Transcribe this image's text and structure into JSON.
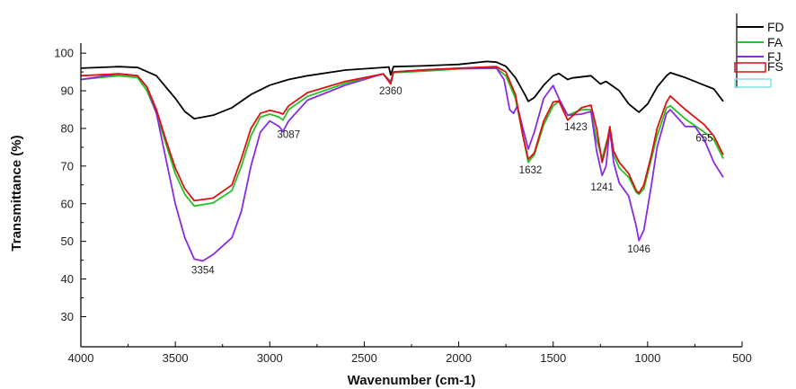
{
  "chart_data": {
    "type": "line",
    "title": "",
    "xlabel": "Wavenumber (cm-1)",
    "ylabel": "Transmittance (%)",
    "xlim": [
      4000,
      500
    ],
    "ylim": [
      22,
      106
    ],
    "x_ticks": [
      4000,
      3500,
      3000,
      2500,
      2000,
      1500,
      1000,
      500
    ],
    "y_ticks": [
      30,
      40,
      50,
      60,
      70,
      80,
      90,
      100
    ],
    "legend_position": "top-right",
    "series": [
      {
        "name": "FD",
        "color": "#000000",
        "points": [
          [
            4000,
            96
          ],
          [
            3800,
            96.4
          ],
          [
            3700,
            96.2
          ],
          [
            3600,
            94
          ],
          [
            3500,
            88
          ],
          [
            3450,
            84.5
          ],
          [
            3400,
            82.6
          ],
          [
            3300,
            83.5
          ],
          [
            3200,
            85.5
          ],
          [
            3100,
            89
          ],
          [
            3000,
            91.5
          ],
          [
            2900,
            93
          ],
          [
            2800,
            94
          ],
          [
            2600,
            95.5
          ],
          [
            2400,
            96.2
          ],
          [
            2370,
            96.3
          ],
          [
            2360,
            94.2
          ],
          [
            2345,
            96.4
          ],
          [
            2200,
            96.6
          ],
          [
            2000,
            97
          ],
          [
            1850,
            97.8
          ],
          [
            1800,
            97.6
          ],
          [
            1750,
            96.5
          ],
          [
            1700,
            93.5
          ],
          [
            1650,
            89
          ],
          [
            1632,
            87.2
          ],
          [
            1600,
            88.2
          ],
          [
            1550,
            91.5
          ],
          [
            1500,
            94
          ],
          [
            1470,
            94.6
          ],
          [
            1423,
            93
          ],
          [
            1400,
            93.4
          ],
          [
            1300,
            94
          ],
          [
            1250,
            91.8
          ],
          [
            1220,
            92.5
          ],
          [
            1150,
            90
          ],
          [
            1100,
            86.5
          ],
          [
            1046,
            84.3
          ],
          [
            1000,
            86.5
          ],
          [
            950,
            91
          ],
          [
            900,
            94
          ],
          [
            880,
            94.8
          ],
          [
            800,
            93.5
          ],
          [
            700,
            91.5
          ],
          [
            650,
            90.5
          ],
          [
            600,
            87.2
          ]
        ]
      },
      {
        "name": "FA",
        "color": "#22c322",
        "points": [
          [
            4000,
            93
          ],
          [
            3800,
            94
          ],
          [
            3700,
            93.5
          ],
          [
            3650,
            90
          ],
          [
            3600,
            84
          ],
          [
            3550,
            76
          ],
          [
            3500,
            68
          ],
          [
            3450,
            62.5
          ],
          [
            3400,
            59.4
          ],
          [
            3300,
            60.2
          ],
          [
            3200,
            63.5
          ],
          [
            3150,
            70
          ],
          [
            3100,
            78
          ],
          [
            3050,
            83
          ],
          [
            3000,
            83.8
          ],
          [
            2950,
            83
          ],
          [
            2930,
            82.2
          ],
          [
            2900,
            85
          ],
          [
            2800,
            88.5
          ],
          [
            2600,
            92
          ],
          [
            2400,
            94.5
          ],
          [
            2360,
            92.5
          ],
          [
            2345,
            94.8
          ],
          [
            2200,
            95.2
          ],
          [
            2000,
            95.8
          ],
          [
            1800,
            96
          ],
          [
            1750,
            94
          ],
          [
            1700,
            88
          ],
          [
            1660,
            78
          ],
          [
            1632,
            71
          ],
          [
            1600,
            73
          ],
          [
            1550,
            81
          ],
          [
            1500,
            86
          ],
          [
            1470,
            87.2
          ],
          [
            1423,
            83.5
          ],
          [
            1350,
            85
          ],
          [
            1300,
            85
          ],
          [
            1270,
            77
          ],
          [
            1241,
            72
          ],
          [
            1220,
            76
          ],
          [
            1200,
            79
          ],
          [
            1180,
            73
          ],
          [
            1150,
            69.5
          ],
          [
            1100,
            67
          ],
          [
            1060,
            63
          ],
          [
            1046,
            62.5
          ],
          [
            1020,
            64
          ],
          [
            980,
            72
          ],
          [
            950,
            78
          ],
          [
            900,
            85.5
          ],
          [
            880,
            86
          ],
          [
            800,
            82.5
          ],
          [
            700,
            79
          ],
          [
            650,
            77
          ],
          [
            600,
            72
          ]
        ]
      },
      {
        "name": "FJ",
        "color": "#8a2be2",
        "points": [
          [
            4000,
            93
          ],
          [
            3800,
            94.5
          ],
          [
            3700,
            94
          ],
          [
            3650,
            91
          ],
          [
            3600,
            84
          ],
          [
            3550,
            72
          ],
          [
            3500,
            60
          ],
          [
            3450,
            51
          ],
          [
            3400,
            45.3
          ],
          [
            3354,
            44.8
          ],
          [
            3300,
            46.5
          ],
          [
            3200,
            51
          ],
          [
            3150,
            58
          ],
          [
            3100,
            70
          ],
          [
            3050,
            79
          ],
          [
            3000,
            82
          ],
          [
            2950,
            80.5
          ],
          [
            2930,
            79.2
          ],
          [
            2900,
            82
          ],
          [
            2800,
            87.5
          ],
          [
            2600,
            91.5
          ],
          [
            2400,
            94.5
          ],
          [
            2360,
            92.2
          ],
          [
            2345,
            95
          ],
          [
            2200,
            95.5
          ],
          [
            2000,
            96
          ],
          [
            1800,
            96
          ],
          [
            1760,
            93
          ],
          [
            1730,
            85
          ],
          [
            1710,
            84
          ],
          [
            1690,
            86
          ],
          [
            1660,
            80
          ],
          [
            1632,
            74.5
          ],
          [
            1600,
            79
          ],
          [
            1550,
            88
          ],
          [
            1500,
            91.4
          ],
          [
            1470,
            88
          ],
          [
            1423,
            83.5
          ],
          [
            1350,
            83.8
          ],
          [
            1300,
            84.5
          ],
          [
            1270,
            74
          ],
          [
            1241,
            67.5
          ],
          [
            1220,
            70
          ],
          [
            1200,
            80
          ],
          [
            1180,
            71
          ],
          [
            1150,
            65.5
          ],
          [
            1100,
            62
          ],
          [
            1060,
            54
          ],
          [
            1046,
            50.2
          ],
          [
            1020,
            53
          ],
          [
            980,
            65
          ],
          [
            950,
            75
          ],
          [
            900,
            84
          ],
          [
            880,
            85
          ],
          [
            800,
            80.5
          ],
          [
            750,
            80.5
          ],
          [
            700,
            77
          ],
          [
            650,
            71
          ],
          [
            600,
            67
          ]
        ]
      },
      {
        "name": "FS",
        "color": "#dd1111",
        "points": [
          [
            4000,
            94
          ],
          [
            3800,
            94.5
          ],
          [
            3700,
            94
          ],
          [
            3650,
            91
          ],
          [
            3600,
            85
          ],
          [
            3550,
            77
          ],
          [
            3500,
            69.5
          ],
          [
            3450,
            64
          ],
          [
            3400,
            60.8
          ],
          [
            3300,
            61.5
          ],
          [
            3200,
            65
          ],
          [
            3150,
            72
          ],
          [
            3100,
            80
          ],
          [
            3050,
            84
          ],
          [
            3000,
            84.8
          ],
          [
            2950,
            84.2
          ],
          [
            2930,
            83.8
          ],
          [
            2900,
            86
          ],
          [
            2800,
            89.5
          ],
          [
            2600,
            92.5
          ],
          [
            2400,
            94.5
          ],
          [
            2360,
            91.8
          ],
          [
            2345,
            95
          ],
          [
            2200,
            95.5
          ],
          [
            2000,
            96
          ],
          [
            1800,
            96.4
          ],
          [
            1750,
            95
          ],
          [
            1700,
            89
          ],
          [
            1660,
            78
          ],
          [
            1632,
            71.8
          ],
          [
            1600,
            73.5
          ],
          [
            1550,
            82
          ],
          [
            1500,
            87
          ],
          [
            1470,
            87.3
          ],
          [
            1423,
            82.2
          ],
          [
            1350,
            85.5
          ],
          [
            1300,
            86.2
          ],
          [
            1270,
            80
          ],
          [
            1241,
            71
          ],
          [
            1220,
            75
          ],
          [
            1200,
            80.5
          ],
          [
            1180,
            74
          ],
          [
            1150,
            71
          ],
          [
            1100,
            68
          ],
          [
            1060,
            63.5
          ],
          [
            1046,
            62.8
          ],
          [
            1020,
            65
          ],
          [
            980,
            73
          ],
          [
            950,
            80
          ],
          [
            900,
            87
          ],
          [
            880,
            88.6
          ],
          [
            800,
            85
          ],
          [
            700,
            81
          ],
          [
            650,
            78
          ],
          [
            600,
            73
          ]
        ]
      },
      {
        "name": "FS",
        "color": "#7fe3e8",
        "points": []
      }
    ],
    "annotations": [
      {
        "text": "3354",
        "x": 3354,
        "y": 41.5
      },
      {
        "text": "3087",
        "x": 2900,
        "y": 77.5
      },
      {
        "text": "2360",
        "x": 2360,
        "y": 89
      },
      {
        "text": "1632",
        "x": 1620,
        "y": 68
      },
      {
        "text": "1423",
        "x": 1380,
        "y": 79.5
      },
      {
        "text": "1241",
        "x": 1241,
        "y": 63.5
      },
      {
        "text": "1046",
        "x": 1046,
        "y": 47
      },
      {
        "text": "655",
        "x": 700,
        "y": 76.5
      }
    ]
  }
}
